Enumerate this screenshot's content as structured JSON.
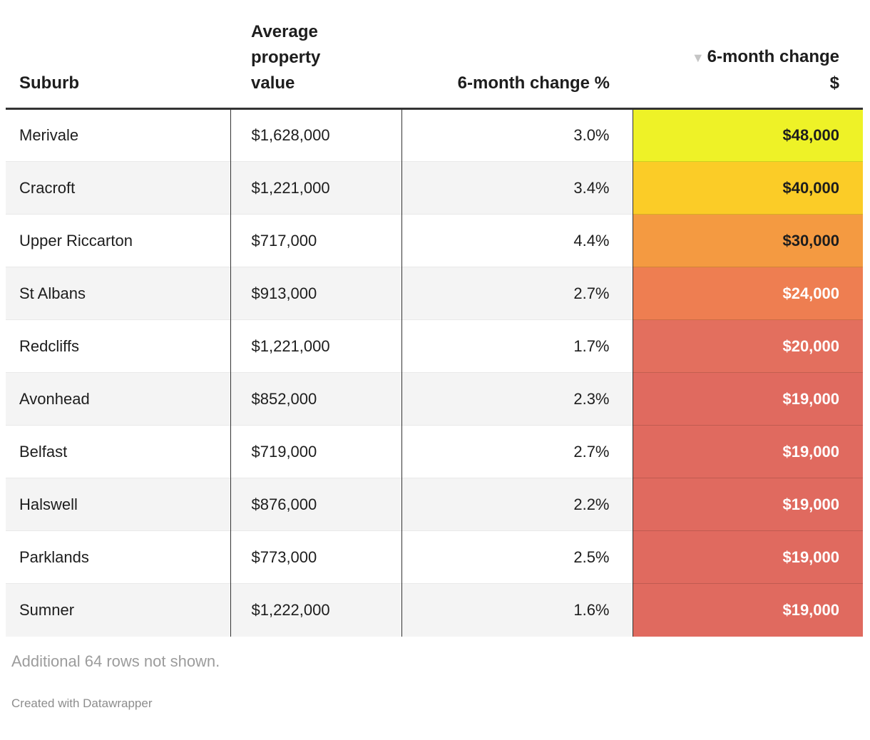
{
  "table": {
    "headers": {
      "suburb": "Suburb",
      "avg_value": "Average property value",
      "change_pct": "6-month change %",
      "change_dollar": "6-month change $",
      "sort_arrow": "▼",
      "sorted_column": "6-month change $",
      "sort_direction": "descending"
    },
    "rows": [
      {
        "suburb": "Merivale",
        "avg_value": "$1,628,000",
        "change_pct": "3.0%",
        "change_dollar": "$48,000",
        "heat_bg": "#eef227",
        "heat_fg": "#1d1d1d"
      },
      {
        "suburb": "Cracroft",
        "avg_value": "$1,221,000",
        "change_pct": "3.4%",
        "change_dollar": "$40,000",
        "heat_bg": "#fbcc27",
        "heat_fg": "#1d1d1d"
      },
      {
        "suburb": "Upper Riccarton",
        "avg_value": "$717,000",
        "change_pct": "4.4%",
        "change_dollar": "$30,000",
        "heat_bg": "#f49a41",
        "heat_fg": "#1d1d1d"
      },
      {
        "suburb": "St Albans",
        "avg_value": "$913,000",
        "change_pct": "2.7%",
        "change_dollar": "$24,000",
        "heat_bg": "#ee7e51",
        "heat_fg": "#ffffff"
      },
      {
        "suburb": "Redcliffs",
        "avg_value": "$1,221,000",
        "change_pct": "1.7%",
        "change_dollar": "$20,000",
        "heat_bg": "#e36f5e",
        "heat_fg": "#ffffff"
      },
      {
        "suburb": "Avonhead",
        "avg_value": "$852,000",
        "change_pct": "2.3%",
        "change_dollar": "$19,000",
        "heat_bg": "#e06a5f",
        "heat_fg": "#ffffff"
      },
      {
        "suburb": "Belfast",
        "avg_value": "$719,000",
        "change_pct": "2.7%",
        "change_dollar": "$19,000",
        "heat_bg": "#e06a5f",
        "heat_fg": "#ffffff"
      },
      {
        "suburb": "Halswell",
        "avg_value": "$876,000",
        "change_pct": "2.2%",
        "change_dollar": "$19,000",
        "heat_bg": "#e06a5f",
        "heat_fg": "#ffffff"
      },
      {
        "suburb": "Parklands",
        "avg_value": "$773,000",
        "change_pct": "2.5%",
        "change_dollar": "$19,000",
        "heat_bg": "#e06a5f",
        "heat_fg": "#ffffff"
      },
      {
        "suburb": "Sumner",
        "avg_value": "$1,222,000",
        "change_pct": "1.6%",
        "change_dollar": "$19,000",
        "heat_bg": "#e06a5f",
        "heat_fg": "#ffffff"
      }
    ]
  },
  "footer": {
    "additional_note": "Additional 64 rows not shown.",
    "attribution": "Created with Datawrapper"
  },
  "chart_data": {
    "type": "table",
    "columns": [
      "Suburb",
      "Average property value",
      "6-month change %",
      "6-month change $"
    ],
    "rows": [
      [
        "Merivale",
        1628000,
        3.0,
        48000
      ],
      [
        "Cracroft",
        1221000,
        3.4,
        40000
      ],
      [
        "Upper Riccarton",
        717000,
        4.4,
        30000
      ],
      [
        "St Albans",
        913000,
        2.7,
        24000
      ],
      [
        "Redcliffs",
        1221000,
        1.7,
        20000
      ],
      [
        "Avonhead",
        852000,
        2.3,
        19000
      ],
      [
        "Belfast",
        719000,
        2.7,
        19000
      ],
      [
        "Halswell",
        876000,
        2.2,
        19000
      ],
      [
        "Parklands",
        773000,
        2.5,
        19000
      ],
      [
        "Sumner",
        1222000,
        1.6,
        19000
      ]
    ],
    "sorted_by": "6-month change $",
    "sort_direction": "descending",
    "heatmap_column": "6-month change $",
    "heatmap_scale": [
      "#eef227",
      "#fbcc27",
      "#f49a41",
      "#ee7e51",
      "#e06a5f"
    ],
    "hidden_rows_note": "Additional 64 rows not shown."
  }
}
